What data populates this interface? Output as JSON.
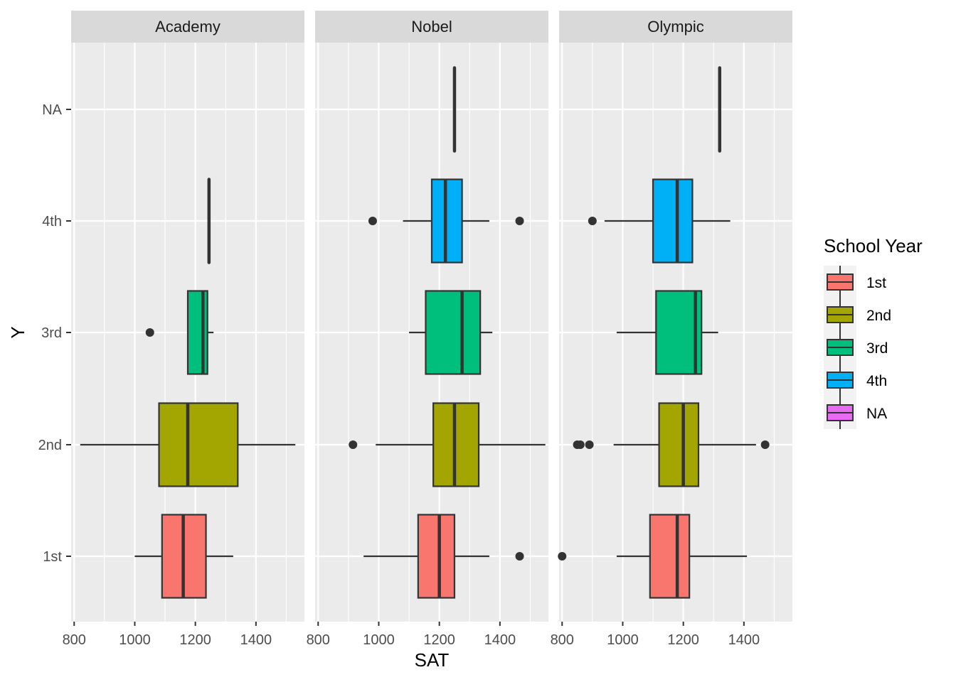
{
  "chart_data": {
    "type": "boxplot",
    "facets": [
      "Academy",
      "Nobel",
      "Olympic"
    ],
    "categories": [
      "1st",
      "2nd",
      "3rd",
      "4th",
      "NA"
    ],
    "xlabel": "SAT",
    "ylabel": "Y",
    "xticks": [
      800,
      1000,
      1200,
      1400
    ],
    "xlim": [
      790,
      1560
    ],
    "grid": true,
    "legend": {
      "title": "School Year",
      "position": "right",
      "entries": [
        {
          "label": "1st",
          "color": "#F8766D"
        },
        {
          "label": "2nd",
          "color": "#A3A500"
        },
        {
          "label": "3rd",
          "color": "#00BF7D"
        },
        {
          "label": "4th",
          "color": "#00B0F6"
        },
        {
          "label": "NA",
          "color": "#E76BF3"
        }
      ]
    },
    "boxes": {
      "Academy": [
        {
          "y": "1st",
          "low": 1000,
          "q1": 1090,
          "median": 1160,
          "q3": 1235,
          "high": 1325,
          "outliers": []
        },
        {
          "y": "2nd",
          "low": 820,
          "q1": 1080,
          "median": 1175,
          "q3": 1340,
          "high": 1530,
          "outliers": []
        },
        {
          "y": "3rd",
          "low": 1175,
          "q1": 1175,
          "median": 1225,
          "q3": 1240,
          "high": 1260,
          "outliers": [
            1050
          ]
        },
        {
          "y": "4th",
          "low": 1245,
          "q1": 1245,
          "median": 1245,
          "q3": 1245,
          "high": 1245,
          "outliers": []
        }
      ],
      "Nobel": [
        {
          "y": "1st",
          "low": 950,
          "q1": 1130,
          "median": 1200,
          "q3": 1250,
          "high": 1365,
          "outliers": [
            1465
          ]
        },
        {
          "y": "2nd",
          "low": 990,
          "q1": 1180,
          "median": 1250,
          "q3": 1330,
          "high": 1550,
          "outliers": [
            915
          ]
        },
        {
          "y": "3rd",
          "low": 1100,
          "q1": 1155,
          "median": 1275,
          "q3": 1335,
          "high": 1375,
          "outliers": []
        },
        {
          "y": "4th",
          "low": 1080,
          "q1": 1175,
          "median": 1220,
          "q3": 1275,
          "high": 1365,
          "outliers": [
            980,
            1465
          ]
        },
        {
          "y": "NA",
          "low": 1250,
          "q1": 1250,
          "median": 1250,
          "q3": 1250,
          "high": 1250,
          "outliers": []
        }
      ],
      "Olympic": [
        {
          "y": "1st",
          "low": 980,
          "q1": 1090,
          "median": 1180,
          "q3": 1220,
          "high": 1410,
          "outliers": [
            800
          ]
        },
        {
          "y": "2nd",
          "low": 970,
          "q1": 1120,
          "median": 1200,
          "q3": 1250,
          "high": 1440,
          "outliers": [
            850,
            860,
            890,
            1470
          ]
        },
        {
          "y": "3rd",
          "low": 980,
          "q1": 1110,
          "median": 1240,
          "q3": 1260,
          "high": 1315,
          "outliers": []
        },
        {
          "y": "4th",
          "low": 940,
          "q1": 1100,
          "median": 1180,
          "q3": 1230,
          "high": 1355,
          "outliers": [
            900
          ]
        },
        {
          "y": "NA",
          "low": 1320,
          "q1": 1320,
          "median": 1320,
          "q3": 1320,
          "high": 1320,
          "outliers": []
        }
      ]
    }
  }
}
